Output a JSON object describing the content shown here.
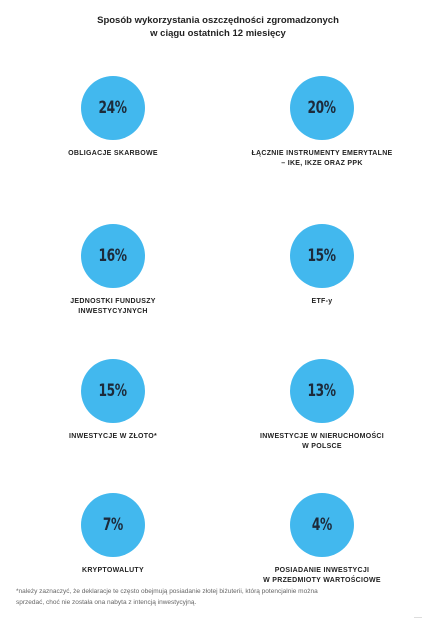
{
  "title_line1": "Sposób wykorzystania oszczędności zgromadzonych",
  "title_line2": "w ciągu ostatnich 12 miesięcy",
  "accent_color": "#42b8ee",
  "chart_data": {
    "type": "table",
    "title": "Sposób wykorzystania oszczędności zgromadzonych w ciągu ostatnich 12 miesięcy",
    "categories": [
      "OBLIGACJE SKARBOWE",
      "ŁĄCZNIE INSTRUMENTY EMERYTALNE – IKE, IKZE ORAZ PPK",
      "JEDNOSTKI FUNDUSZY INWESTYCYJNYCH",
      "ETF-y",
      "INWESTYCJE W ZŁOTO*",
      "INWESTYCJE W NIERUCHOMOŚCI W POLSCE",
      "KRYPTOWALUTY",
      "POSIADANIE INWESTYCJI W PRZEDMIOTY WARTOŚCIOWE"
    ],
    "values": [
      24,
      20,
      16,
      15,
      15,
      13,
      7,
      4
    ],
    "items": [
      {
        "value": "24%",
        "label1": "OBLIGACJE SKARBOWE",
        "label2": ""
      },
      {
        "value": "20%",
        "label1": "ŁĄCZNIE INSTRUMENTY EMERYTALNE",
        "label2": "– IKE, IKZE ORAZ PPK"
      },
      {
        "value": "16%",
        "label1": "JEDNOSTKI FUNDUSZY",
        "label2": "INWESTYCYJNYCH"
      },
      {
        "value": "15%",
        "label1": "ETF-y",
        "label2": ""
      },
      {
        "value": "15%",
        "label1": "INWESTYCJE W ZŁOTO*",
        "label2": ""
      },
      {
        "value": "13%",
        "label1": "INWESTYCJE W NIERUCHOMOŚCI",
        "label2": "W POLSCE"
      },
      {
        "value": "7%",
        "label1": "KRYPTOWALUTY",
        "label2": ""
      },
      {
        "value": "4%",
        "label1": "POSIADANIE INWESTYCJI",
        "label2": "W PRZEDMIOTY WARTOŚCIOWE"
      }
    ]
  },
  "footnote_line1": "*należy zaznaczyć, że deklaracje te często obejmują posiadanie złotej biżuterii, którą potencjalnie można",
  "footnote_line2": "sprzedać, choć nie została ona nabyta z intencją inwestycyjną."
}
